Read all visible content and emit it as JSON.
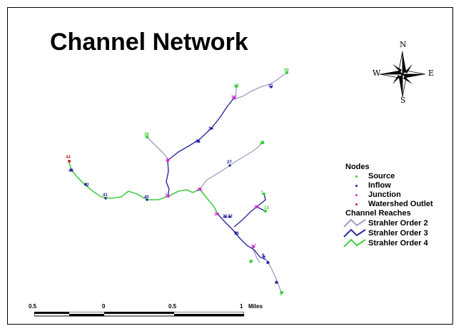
{
  "title": "Channel Network",
  "compass": {
    "north": "N",
    "south": "S",
    "east": "E",
    "west": "W"
  },
  "legend": {
    "nodes_heading": "Nodes",
    "nodes": [
      {
        "label": "Source",
        "color": "#33cc33"
      },
      {
        "label": "Inflow",
        "color": "#1a1aa0"
      },
      {
        "label": "Junction",
        "color": "#cc33cc"
      },
      {
        "label": "Watershed Outlet",
        "color": "#cc2222"
      }
    ],
    "reaches_heading": "Channel Reaches",
    "reaches": [
      {
        "label": "Strahler Order 2",
        "color": "#9d9dc4"
      },
      {
        "label": "Strahler Order 3",
        "color": "#2a2aa0"
      },
      {
        "label": "Strahler Order 4",
        "color": "#44cc44"
      }
    ]
  },
  "scale": {
    "ticks": [
      "0.5",
      "0",
      "0.5",
      "1"
    ],
    "unit": "Miles"
  },
  "node_labels": [
    "44",
    "43",
    "42",
    "41",
    "40",
    "38",
    "37",
    "36",
    "35",
    "34",
    "33",
    "32",
    "31",
    "30",
    "29",
    "27",
    "26",
    "22",
    "21",
    "16",
    "17",
    "9",
    "8",
    "6",
    "5",
    "4",
    "3",
    "2",
    "1",
    "13",
    "11",
    "10",
    "12"
  ]
}
